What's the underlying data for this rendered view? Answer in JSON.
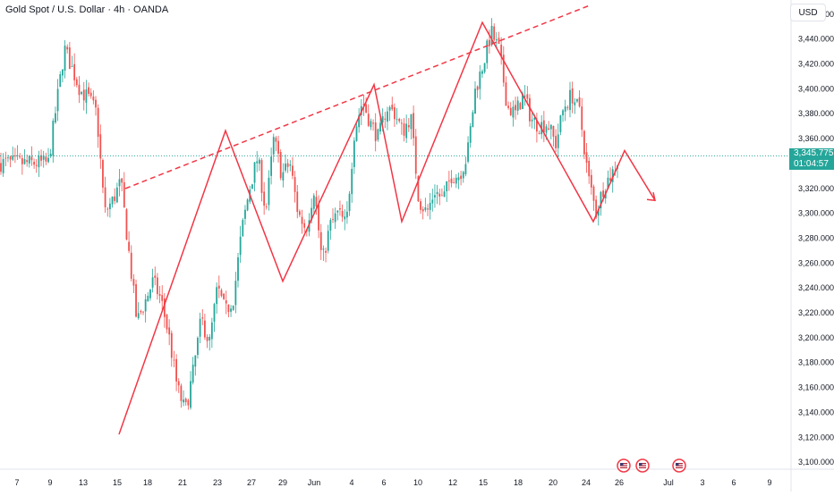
{
  "header": {
    "title": "Gold Spot / U.S. Dollar · 4h · OANDA",
    "currency": "USD"
  },
  "price_label": {
    "price": "3,345.775",
    "countdown": "01:04:57",
    "color": "#26a69a"
  },
  "colors": {
    "up": "#26a69a",
    "down": "#ef5350",
    "pattern": "#f23645",
    "axis_text": "#131722",
    "price_line": "#26a69a"
  },
  "event_icons": [
    "us-flag-icon",
    "us-flag-icon",
    "us-flag-icon"
  ],
  "chart_data": {
    "type": "candlestick",
    "x_ticks": [
      "7",
      "9",
      "13",
      "15",
      "18",
      "21",
      "23",
      "27",
      "29",
      "Jun",
      "4",
      "6",
      "10",
      "12",
      "15",
      "18",
      "20",
      "24",
      "26",
      "Jul",
      "3",
      "6",
      "9"
    ],
    "y_ticks": [
      "3,460.000",
      "3,440.000",
      "3,420.000",
      "3,400.000",
      "3,380.000",
      "3,360.000",
      "3,340.000",
      "3,320.000",
      "3,300.000",
      "3,280.000",
      "3,260.000",
      "3,240.000",
      "3,220.000",
      "3,200.000",
      "3,180.000",
      "3,160.000",
      "3,140.000",
      "3,120.000",
      "3,100.000"
    ],
    "ylim": [
      3095,
      3470
    ],
    "current_price": 3345.775,
    "trendline": {
      "from": {
        "x": "16 May",
        "y": 3328
      },
      "to": {
        "x": "27 Jun",
        "y": 3470
      },
      "style": "dashed"
    },
    "zigzag": [
      {
        "x": "15 May",
        "y": 3122
      },
      {
        "x": "23 May",
        "y": 3366
      },
      {
        "x": "29 May",
        "y": 3245
      },
      {
        "x": "5 Jun",
        "y": 3403
      },
      {
        "x": "9 Jun",
        "y": 3293
      },
      {
        "x": "15 Jun",
        "y": 3453
      },
      {
        "x": "25 Jun",
        "y": 3293
      },
      {
        "x": "26 Jun",
        "y": 3350
      },
      {
        "x": "28 Jun",
        "y": 3310
      }
    ],
    "price_path": [
      [
        6,
        3340
      ],
      [
        8,
        3432
      ],
      [
        10,
        3398
      ],
      [
        11,
        3392
      ],
      [
        12,
        3380
      ],
      [
        13,
        3300
      ],
      [
        14,
        3310
      ],
      [
        15,
        3325
      ],
      [
        17,
        3212
      ],
      [
        19,
        3245
      ],
      [
        20,
        3230
      ],
      [
        21,
        3200
      ],
      [
        22,
        3160
      ],
      [
        23,
        3140
      ],
      [
        24,
        3173
      ],
      [
        25,
        3215
      ],
      [
        26,
        3195
      ],
      [
        27,
        3240
      ],
      [
        28,
        3220
      ],
      [
        29,
        3232
      ],
      [
        30,
        3285
      ],
      [
        31,
        3320
      ],
      [
        32,
        3345
      ],
      [
        33,
        3300
      ],
      [
        34,
        3360
      ],
      [
        35,
        3330
      ],
      [
        36,
        3340
      ],
      [
        37,
        3300
      ],
      [
        38,
        3287
      ],
      [
        39,
        3320
      ],
      [
        40,
        3260
      ],
      [
        41,
        3290
      ],
      [
        42,
        3300
      ],
      [
        43,
        3290
      ],
      [
        44,
        3365
      ],
      [
        45,
        3390
      ],
      [
        46,
        3372
      ],
      [
        47,
        3360
      ],
      [
        48,
        3385
      ],
      [
        49,
        3380
      ],
      [
        50,
        3365
      ],
      [
        51,
        3378
      ],
      [
        52,
        3310
      ],
      [
        53,
        3300
      ],
      [
        54,
        3318
      ],
      [
        55,
        3310
      ],
      [
        56,
        3330
      ],
      [
        57,
        3330
      ],
      [
        58,
        3345
      ],
      [
        59,
        3398
      ],
      [
        60,
        3420
      ],
      [
        61,
        3445
      ],
      [
        62,
        3430
      ],
      [
        63,
        3385
      ],
      [
        64,
        3380
      ],
      [
        65,
        3395
      ],
      [
        66,
        3375
      ],
      [
        67,
        3370
      ],
      [
        68,
        3372
      ],
      [
        69,
        3355
      ],
      [
        70,
        3385
      ],
      [
        71,
        3395
      ],
      [
        72,
        3380
      ],
      [
        73,
        3330
      ],
      [
        74,
        3300
      ],
      [
        75,
        3322
      ],
      [
        76,
        3332
      ],
      [
        77,
        3346
      ]
    ]
  }
}
